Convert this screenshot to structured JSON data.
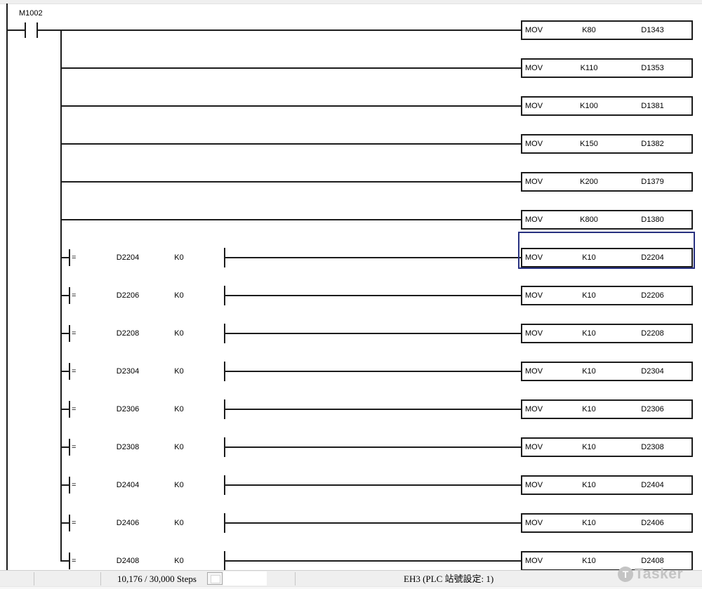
{
  "ladder": {
    "line_color": "#1c1c1c",
    "selection_color": "#283180",
    "power_contact": {
      "label": "M1002"
    },
    "rungs": [
      {
        "outputs": {
          "mnemonic": "MOV",
          "operand1": "K80",
          "operand2": "D1343"
        }
      },
      {
        "outputs": {
          "mnemonic": "MOV",
          "operand1": "K110",
          "operand2": "D1353"
        }
      },
      {
        "outputs": {
          "mnemonic": "MOV",
          "operand1": "K100",
          "operand2": "D1381"
        }
      },
      {
        "outputs": {
          "mnemonic": "MOV",
          "operand1": "K150",
          "operand2": "D1382"
        }
      },
      {
        "outputs": {
          "mnemonic": "MOV",
          "operand1": "K200",
          "operand2": "D1379"
        }
      },
      {
        "outputs": {
          "mnemonic": "MOV",
          "operand1": "K800",
          "operand2": "D1380"
        }
      },
      {
        "compare": {
          "symbol": "=",
          "operand1": "D2204",
          "operand2": "K0"
        },
        "outputs": {
          "mnemonic": "MOV",
          "operand1": "K10",
          "operand2": "D2204"
        },
        "selected": true
      },
      {
        "compare": {
          "symbol": "=",
          "operand1": "D2206",
          "operand2": "K0"
        },
        "outputs": {
          "mnemonic": "MOV",
          "operand1": "K10",
          "operand2": "D2206"
        }
      },
      {
        "compare": {
          "symbol": "=",
          "operand1": "D2208",
          "operand2": "K0"
        },
        "outputs": {
          "mnemonic": "MOV",
          "operand1": "K10",
          "operand2": "D2208"
        }
      },
      {
        "compare": {
          "symbol": "=",
          "operand1": "D2304",
          "operand2": "K0"
        },
        "outputs": {
          "mnemonic": "MOV",
          "operand1": "K10",
          "operand2": "D2304"
        }
      },
      {
        "compare": {
          "symbol": "=",
          "operand1": "D2306",
          "operand2": "K0"
        },
        "outputs": {
          "mnemonic": "MOV",
          "operand1": "K10",
          "operand2": "D2306"
        }
      },
      {
        "compare": {
          "symbol": "=",
          "operand1": "D2308",
          "operand2": "K0"
        },
        "outputs": {
          "mnemonic": "MOV",
          "operand1": "K10",
          "operand2": "D2308"
        }
      },
      {
        "compare": {
          "symbol": "=",
          "operand1": "D2404",
          "operand2": "K0"
        },
        "outputs": {
          "mnemonic": "MOV",
          "operand1": "K10",
          "operand2": "D2404"
        }
      },
      {
        "compare": {
          "symbol": "=",
          "operand1": "D2406",
          "operand2": "K0"
        },
        "outputs": {
          "mnemonic": "MOV",
          "operand1": "K10",
          "operand2": "D2406"
        }
      },
      {
        "compare": {
          "symbol": "=",
          "operand1": "D2408",
          "operand2": "K0"
        },
        "outputs": {
          "mnemonic": "MOV",
          "operand1": "K10",
          "operand2": "D2408"
        }
      }
    ]
  },
  "status_bar": {
    "steps": "10,176 / 30,000 Steps",
    "plc": "EH3 (PLC 站號設定: 1)"
  },
  "watermark": {
    "label": "Tasker",
    "icon": "T"
  }
}
